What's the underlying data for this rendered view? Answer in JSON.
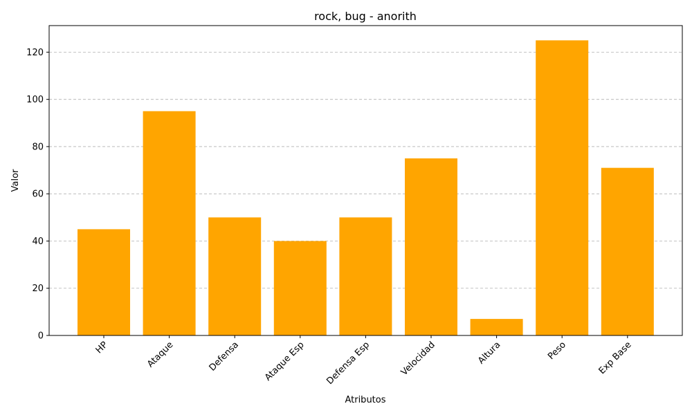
{
  "chart_data": {
    "type": "bar",
    "title": "rock, bug - anorith",
    "xlabel": "Atributos",
    "ylabel": "Valor",
    "categories": [
      "HP",
      "Ataque",
      "Defensa",
      "Ataque Esp",
      "Defensa Esp",
      "Velocidad",
      "Altura",
      "Peso",
      "Exp Base"
    ],
    "values": [
      45,
      95,
      50,
      40,
      50,
      75,
      7,
      125,
      71
    ],
    "ylim": [
      0,
      131.25
    ],
    "yticks": [
      0,
      20,
      40,
      60,
      80,
      100,
      120
    ],
    "grid": "y-axis dashed",
    "bar_color": "#FFA500",
    "xtick_rotation": "45 degrees"
  }
}
